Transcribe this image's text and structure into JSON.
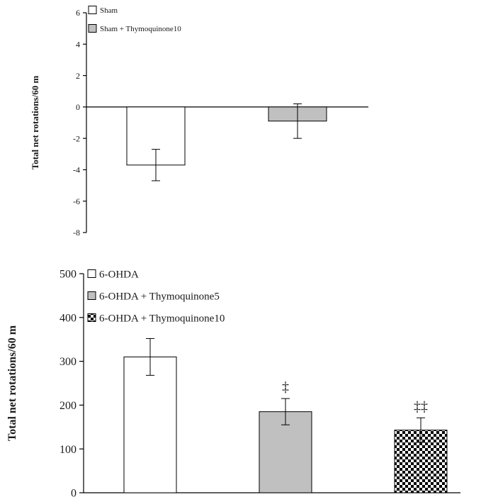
{
  "chart_data": [
    {
      "type": "bar",
      "ylabel": "Total net rotations/60 m",
      "ylim": [
        -8,
        6
      ],
      "yticks": [
        6,
        4,
        2,
        0,
        -2,
        -4,
        -6,
        -8
      ],
      "legend_position": "top-left",
      "grid": false,
      "series": [
        {
          "name": "Sham",
          "value": -3.7,
          "error": 1.0,
          "fill": "#ffffff",
          "pattern": "none"
        },
        {
          "name": "Sham + Thymoquinone10",
          "value": -0.9,
          "error": 1.1,
          "fill": "#c0c0c0",
          "pattern": "none"
        }
      ]
    },
    {
      "type": "bar",
      "ylabel": "Total net rotations/60 m",
      "ylim": [
        0,
        500
      ],
      "yticks": [
        500,
        400,
        300,
        200,
        100,
        0
      ],
      "legend_position": "top-left",
      "grid": false,
      "series": [
        {
          "name": "6-OHDA",
          "value": 310,
          "error": 42,
          "fill": "#ffffff",
          "pattern": "none",
          "annotation": ""
        },
        {
          "name": "6-OHDA + Thymoquinone5",
          "value": 185,
          "error": 30,
          "fill": "#c0c0c0",
          "pattern": "none",
          "annotation": "‡"
        },
        {
          "name": "6-OHDA + Thymoquinone10",
          "value": 143,
          "error": 28,
          "fill": "#000000",
          "pattern": "checker",
          "annotation": "‡‡"
        }
      ]
    }
  ]
}
